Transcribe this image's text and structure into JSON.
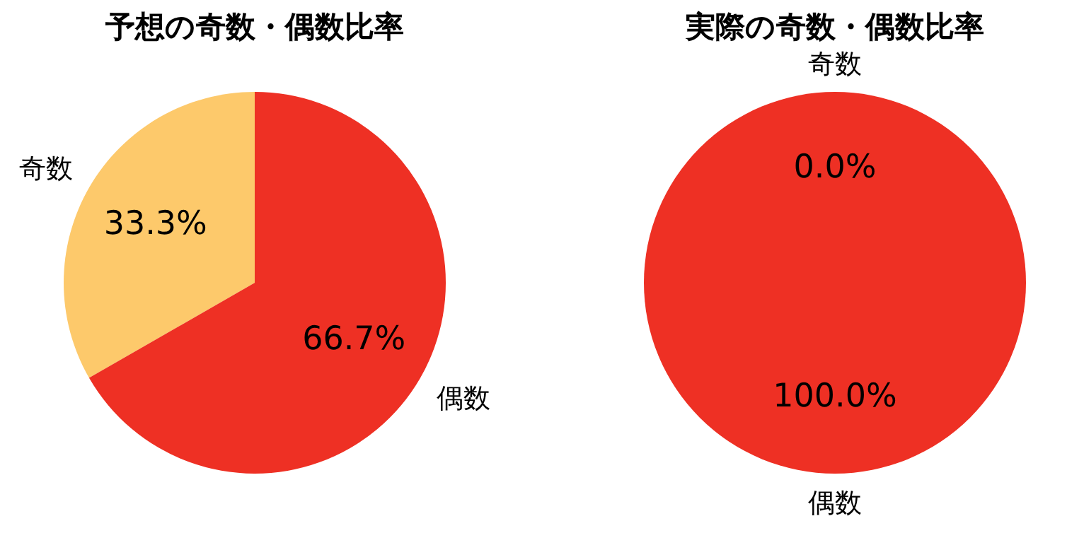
{
  "chart_data": [
    {
      "type": "pie",
      "title": "予想の奇数・偶数比率",
      "categories": [
        "奇数",
        "偶数"
      ],
      "values": [
        33.3,
        66.7
      ],
      "colors": [
        "#fdc96b",
        "#ee3024"
      ],
      "value_labels": [
        "33.3%",
        "66.7%"
      ]
    },
    {
      "type": "pie",
      "title": "実際の奇数・偶数比率",
      "categories": [
        "奇数",
        "偶数"
      ],
      "values": [
        0,
        100
      ],
      "colors": [
        "#fdc96b",
        "#ee3024"
      ],
      "value_labels": [
        "0.0%",
        "100.0%"
      ]
    }
  ]
}
